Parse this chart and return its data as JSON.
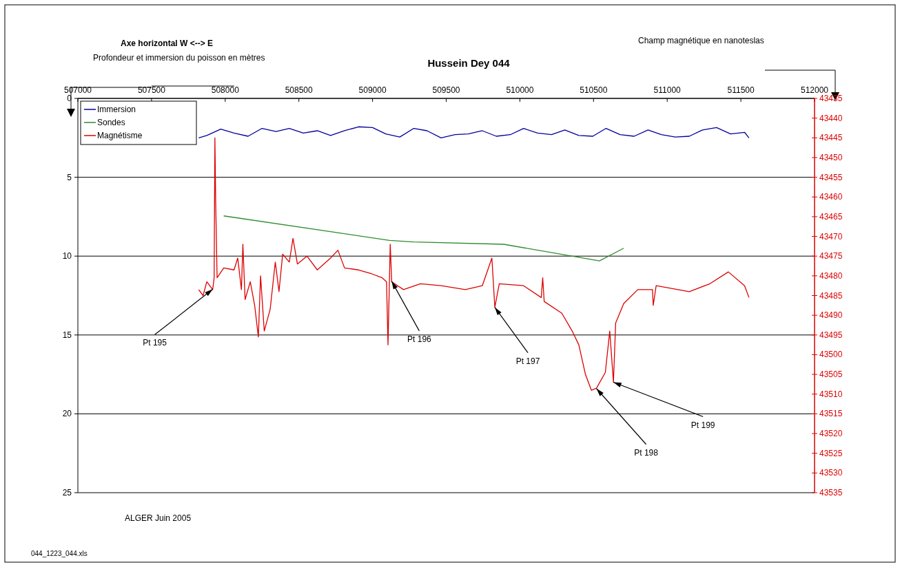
{
  "chart_data": {
    "type": "line",
    "title": "Hussein Dey 044",
    "xlabel": "Axe horizontal W <--> E",
    "ylabel": "Profondeur et immersion du poisson en mètres",
    "y2label": "Champ magnétique en nanoteslas",
    "xlim": [
      507000,
      512000
    ],
    "xticks": [
      507000,
      507500,
      508000,
      508500,
      509000,
      509500,
      510000,
      510500,
      511000,
      511500,
      512000
    ],
    "ylim": [
      25,
      0
    ],
    "yticks": [
      0,
      5,
      10,
      15,
      20,
      25
    ],
    "y2lim": [
      43535,
      43435
    ],
    "y2ticks": [
      43435,
      43440,
      43445,
      43450,
      43455,
      43460,
      43465,
      43470,
      43475,
      43480,
      43485,
      43490,
      43495,
      43500,
      43505,
      43510,
      43515,
      43520,
      43525,
      43530,
      43535
    ],
    "grid": "y",
    "legend": "top left",
    "series": [
      {
        "name": "Immersion",
        "color": "#000099",
        "x": [
          507820,
          507875,
          507970,
          508060,
          508155,
          508250,
          508345,
          508435,
          508530,
          508625,
          508715,
          508810,
          508905,
          509000,
          509090,
          509185,
          509280,
          509370,
          509465,
          509560,
          509650,
          509745,
          509840,
          509935,
          510025,
          510120,
          510215,
          510305,
          510400,
          510495,
          510585,
          510680,
          510775,
          510870,
          510960,
          511055,
          511150,
          511240,
          511335,
          511430,
          511525,
          511555
        ],
        "values": [
          2.5,
          2.35,
          1.95,
          2.2,
          2.4,
          1.9,
          2.1,
          1.9,
          2.2,
          2.05,
          2.35,
          2.05,
          1.8,
          1.85,
          2.25,
          2.45,
          1.9,
          2.05,
          2.5,
          2.3,
          2.25,
          2.05,
          2.4,
          2.3,
          1.9,
          2.2,
          2.3,
          2.0,
          2.35,
          2.4,
          1.9,
          2.3,
          2.4,
          2.0,
          2.3,
          2.45,
          2.4,
          2.0,
          1.85,
          2.25,
          2.15,
          2.5
        ]
      },
      {
        "name": "Sondes",
        "color": "#2e8b2e",
        "x": [
          507990,
          509115,
          509280,
          509890,
          510540,
          510705
        ],
        "values": [
          7.45,
          9.0,
          9.1,
          9.25,
          10.3,
          9.5
        ]
      },
      {
        "name": "Magnétisme",
        "color": "#dd0000",
        "axis": "y2",
        "x": [
          507820,
          507850,
          507875,
          507915,
          507925,
          507930,
          507935,
          507945,
          507990,
          508060,
          508085,
          508110,
          508120,
          508135,
          508170,
          508200,
          508225,
          508240,
          508265,
          508305,
          508340,
          508365,
          508390,
          508435,
          508460,
          508490,
          508555,
          508625,
          508715,
          508765,
          508810,
          508905,
          508995,
          509065,
          509095,
          509105,
          509120,
          509130,
          509210,
          509325,
          509465,
          509630,
          509745,
          509810,
          509830,
          509860,
          510025,
          510145,
          510155,
          510165,
          510285,
          510355,
          510400,
          510445,
          510485,
          510520,
          510580,
          510610,
          510635,
          510650,
          510705,
          510800,
          510900,
          510905,
          510925,
          511150,
          511290,
          511415,
          511525,
          511555
        ],
        "values": [
          43483.5,
          43485,
          43481.5,
          43483.5,
          43480.5,
          43445,
          43460.5,
          43480.5,
          43478,
          43478.5,
          43475.5,
          43483.5,
          43472,
          43486,
          43481.5,
          43487.5,
          43495.5,
          43480,
          43494,
          43488.5,
          43476.5,
          43484,
          43474.5,
          43476.5,
          43470.5,
          43477,
          43475,
          43478.5,
          43475.5,
          43473.5,
          43478,
          43478.5,
          43479.5,
          43480.5,
          43481.5,
          43497.5,
          43472,
          43481.5,
          43483.5,
          43482,
          43482.5,
          43483.5,
          43482.5,
          43475.5,
          43488,
          43482,
          43482.5,
          43485.5,
          43480.5,
          43486.5,
          43489.5,
          43494,
          43497.5,
          43505,
          43509,
          43508.5,
          43504.5,
          43494,
          43507,
          43492,
          43487,
          43483.5,
          43483.5,
          43487.5,
          43482.5,
          43484,
          43482,
          43479,
          43482.5,
          43485.5
        ]
      }
    ],
    "annotations": [
      {
        "text": "Pt 195",
        "x": 507915,
        "y": 12.1
      },
      {
        "text": "Pt 196",
        "x": 509130,
        "y": 11.6
      },
      {
        "text": "Pt 197",
        "x": 509830,
        "y": 13.25
      },
      {
        "text": "Pt 198",
        "x": 510520,
        "y": 18.4
      },
      {
        "text": "Pt 199",
        "x": 510635,
        "y": 18
      },
      "ALGER Juin 2005",
      "044_1223_044.xls"
    ]
  }
}
